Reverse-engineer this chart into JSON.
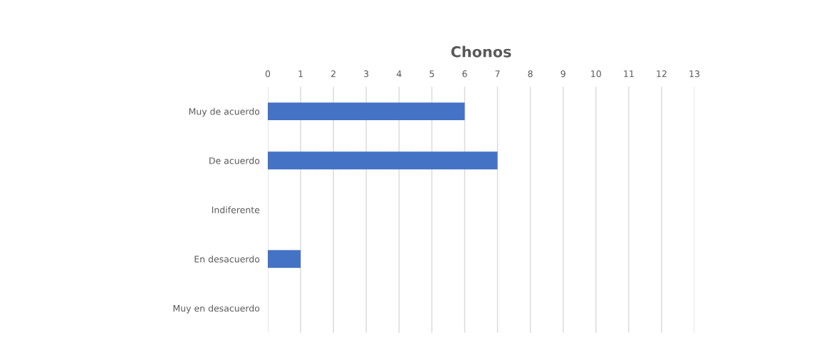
{
  "chart_data": {
    "type": "bar",
    "title": "Chonos",
    "orientation": "horizontal",
    "categories": [
      "Muy de acuerdo",
      "De acuerdo",
      "Indiferente",
      "En desacuerdo",
      "Muy en desacuerdo"
    ],
    "values": [
      6,
      7,
      0,
      1,
      0
    ],
    "color": "#4472c4",
    "xlim": [
      0,
      13
    ],
    "xticks": [
      0,
      1,
      2,
      3,
      4,
      5,
      6,
      7,
      8,
      9,
      10,
      11,
      12,
      13
    ],
    "grid": "x",
    "legend": false
  }
}
